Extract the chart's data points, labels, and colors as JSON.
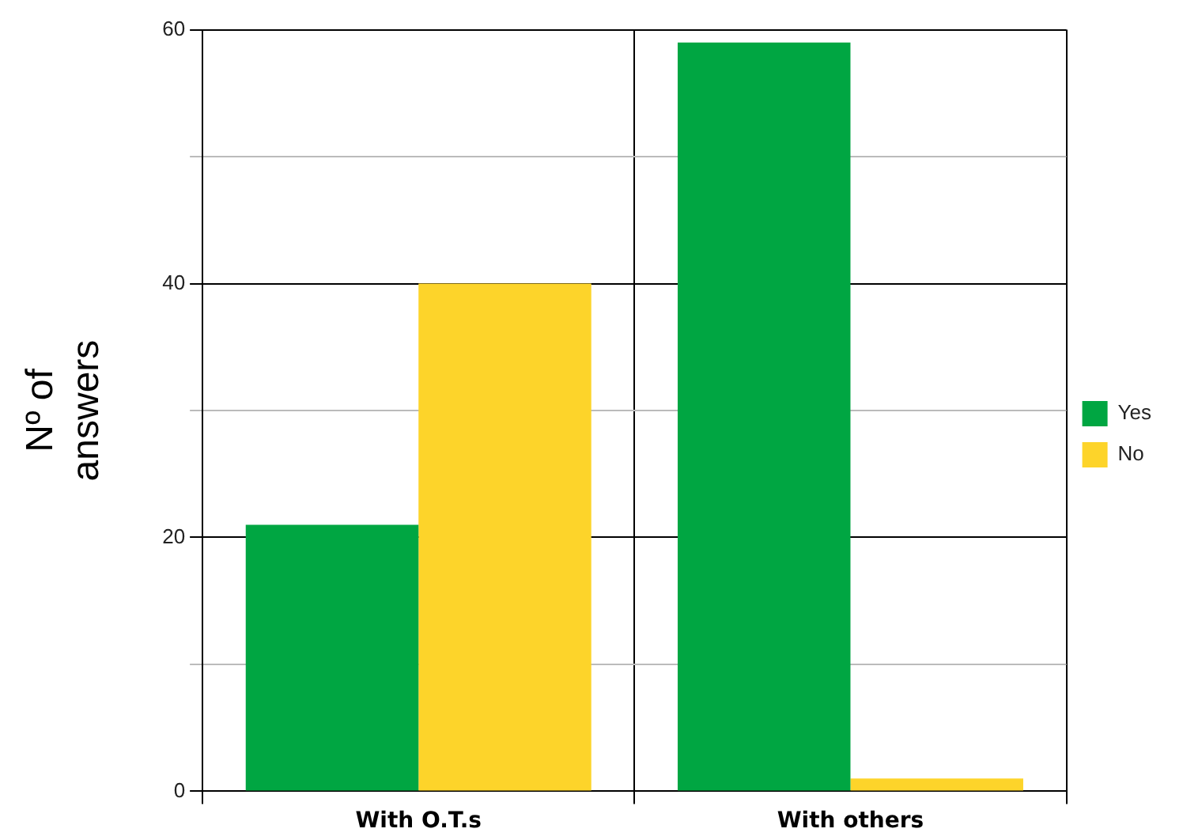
{
  "chart_data": {
    "type": "bar",
    "ylabel": "Nº of answers",
    "categories": [
      "With O.T.s",
      "With others"
    ],
    "series": [
      {
        "name": "Yes",
        "color": "#00a642",
        "values": [
          21,
          59
        ]
      },
      {
        "name": "No",
        "color": "#fdd42a",
        "values": [
          40,
          1
        ]
      }
    ],
    "ylim": [
      0,
      60
    ],
    "yticks": [
      0,
      {
        "value": 10,
        "label": null
      },
      20,
      {
        "value": 30,
        "label": null
      },
      40,
      {
        "value": 50,
        "label": null
      },
      60
    ],
    "grid": true,
    "legend": "right"
  }
}
